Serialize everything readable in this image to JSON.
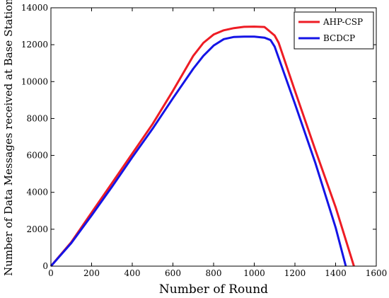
{
  "chart_data": {
    "type": "line",
    "title": "",
    "xlabel": "Number of Round",
    "ylabel": "Number of Data Messages received at Base Station",
    "xlim": [
      0,
      1600
    ],
    "ylim": [
      0,
      14000
    ],
    "xticks": [
      0,
      200,
      400,
      600,
      800,
      1000,
      1200,
      1400,
      1600
    ],
    "xtick_labels": [
      "0",
      "200",
      "400",
      "600",
      "800",
      "1000",
      "1200",
      "1400",
      "1600"
    ],
    "yticks": [
      0,
      2000,
      4000,
      6000,
      8000,
      10000,
      12000,
      14000
    ],
    "ytick_labels": [
      "0",
      "2000",
      "4000",
      "6000",
      "8000",
      "10000",
      "12000",
      "14000"
    ],
    "grid": false,
    "legend_position": "top-right",
    "series": [
      {
        "name": "AHP-CSP",
        "color": "#ee1c24",
        "x": [
          0,
          100,
          200,
          300,
          400,
          500,
          600,
          700,
          750,
          800,
          850,
          900,
          950,
          1000,
          1050,
          1100,
          1120,
          1200,
          1300,
          1400,
          1490
        ],
        "y": [
          0,
          1300,
          2900,
          4500,
          6100,
          7700,
          9500,
          11400,
          12100,
          12550,
          12780,
          12900,
          12970,
          12980,
          12960,
          12500,
          12100,
          9500,
          6300,
          3200,
          0
        ]
      },
      {
        "name": "BCDCP",
        "color": "#1414e6",
        "x": [
          0,
          100,
          200,
          300,
          400,
          500,
          600,
          700,
          750,
          800,
          850,
          900,
          950,
          1000,
          1050,
          1080,
          1100,
          1200,
          1300,
          1400,
          1450
        ],
        "y": [
          0,
          1250,
          2750,
          4300,
          5900,
          7450,
          9100,
          10700,
          11400,
          11950,
          12300,
          12420,
          12440,
          12440,
          12380,
          12250,
          11900,
          8800,
          5600,
          2100,
          0
        ]
      }
    ]
  }
}
